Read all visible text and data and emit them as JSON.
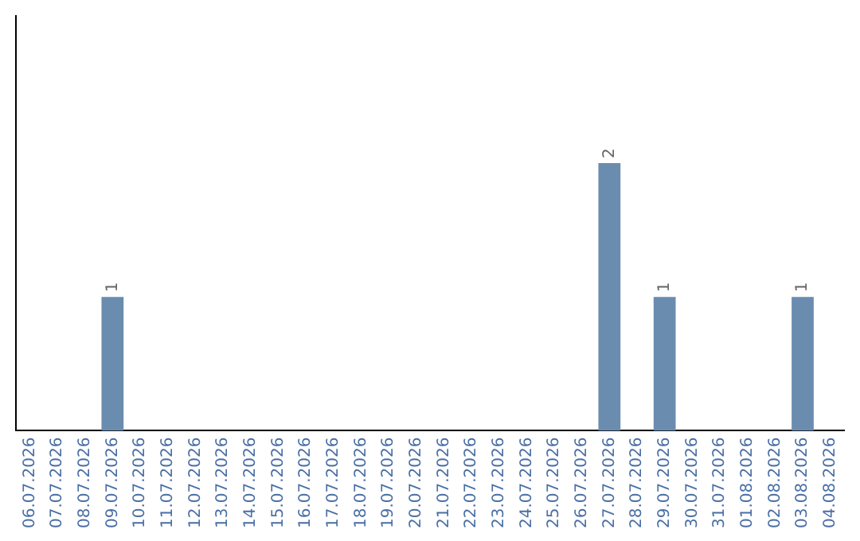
{
  "chart_data": {
    "type": "bar",
    "categories": [
      "06.07.2026",
      "07.07.2026",
      "08.07.2026",
      "09.07.2026",
      "10.07.2026",
      "11.07.2026",
      "12.07.2026",
      "13.07.2026",
      "14.07.2026",
      "15.07.2026",
      "16.07.2026",
      "17.07.2026",
      "18.07.2026",
      "19.07.2026",
      "20.07.2026",
      "21.07.2026",
      "22.07.2026",
      "23.07.2026",
      "24.07.2026",
      "25.07.2026",
      "26.07.2026",
      "27.07.2026",
      "28.07.2026",
      "29.07.2026",
      "30.07.2026",
      "31.07.2026",
      "01.08.2026",
      "02.08.2026",
      "03.08.2026",
      "04.08.2026"
    ],
    "values": [
      0,
      0,
      0,
      1,
      0,
      0,
      0,
      0,
      0,
      0,
      0,
      0,
      0,
      0,
      0,
      0,
      0,
      0,
      0,
      0,
      0,
      2,
      0,
      1,
      0,
      0,
      0,
      0,
      1,
      0
    ],
    "value_labels": [
      null,
      null,
      null,
      "1",
      null,
      null,
      null,
      null,
      null,
      null,
      null,
      null,
      null,
      null,
      null,
      null,
      null,
      null,
      null,
      null,
      null,
      "2",
      null,
      "1",
      null,
      null,
      null,
      null,
      "1",
      null
    ],
    "color": "#6a8caf",
    "ylim": [
      0,
      3.1
    ],
    "tick_labels": "x",
    "grid": false,
    "legend": false
  }
}
